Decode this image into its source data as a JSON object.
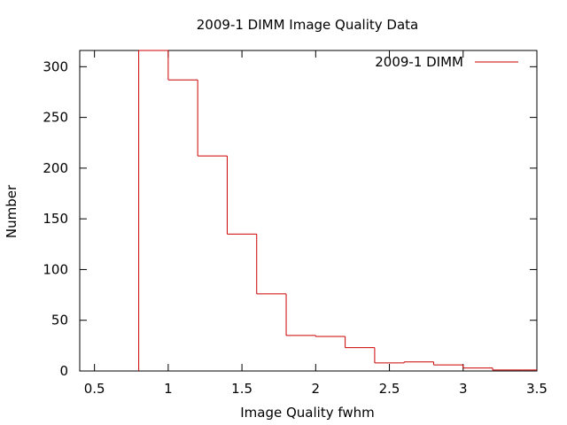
{
  "chart_data": {
    "type": "histogram",
    "title": "2009-1 DIMM Image Quality Data",
    "xlabel": "Image Quality fwhm",
    "ylabel": "Number",
    "xlim": [
      0.4,
      3.5
    ],
    "ylim": [
      0,
      316
    ],
    "xticks": [
      "0.5",
      "1",
      "1.5",
      "2",
      "2.5",
      "3",
      "3.5"
    ],
    "xtick_values": [
      0.5,
      1,
      1.5,
      2,
      2.5,
      3,
      3.5
    ],
    "yticks": [
      "0",
      "50",
      "100",
      "150",
      "200",
      "250",
      "300"
    ],
    "ytick_values": [
      0,
      50,
      100,
      150,
      200,
      250,
      300
    ],
    "grid": false,
    "legend_position": "top-right",
    "series": [
      {
        "name": "2009-1 DIMM",
        "color": "#cc0000",
        "bins": [
          {
            "x0": 0.8,
            "x1": 1.0,
            "value": 316
          },
          {
            "x0": 1.0,
            "x1": 1.2,
            "value": 287
          },
          {
            "x0": 1.2,
            "x1": 1.4,
            "value": 212
          },
          {
            "x0": 1.4,
            "x1": 1.6,
            "value": 135
          },
          {
            "x0": 1.6,
            "x1": 1.8,
            "value": 76
          },
          {
            "x0": 1.8,
            "x1": 2.0,
            "value": 35
          },
          {
            "x0": 2.0,
            "x1": 2.2,
            "value": 34
          },
          {
            "x0": 2.2,
            "x1": 2.4,
            "value": 23
          },
          {
            "x0": 2.4,
            "x1": 2.6,
            "value": 8
          },
          {
            "x0": 2.6,
            "x1": 2.8,
            "value": 9
          },
          {
            "x0": 2.8,
            "x1": 3.0,
            "value": 6
          },
          {
            "x0": 3.0,
            "x1": 3.2,
            "value": 3
          },
          {
            "x0": 3.2,
            "x1": 3.4,
            "value": 1
          },
          {
            "x0": 3.4,
            "x1": 3.5,
            "value": 1
          }
        ]
      }
    ]
  }
}
